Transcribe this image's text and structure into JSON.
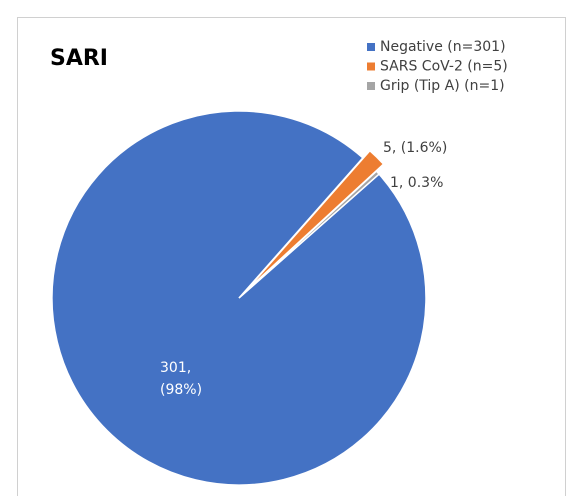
{
  "chart_data": {
    "type": "pie",
    "title": "SARI",
    "categories": [
      "Negative (n=301)",
      "SARS CoV-2 (n=5)",
      "Grip (Tip A) (n=1)"
    ],
    "values": [
      301,
      5,
      1
    ],
    "value_labels": [
      "301,\n(98%)",
      "5, (1.6%)",
      "1, 0.3%"
    ],
    "colors": [
      "#4472c4",
      "#ed7d31",
      "#a5a5a5"
    ],
    "legend": "top-right"
  }
}
